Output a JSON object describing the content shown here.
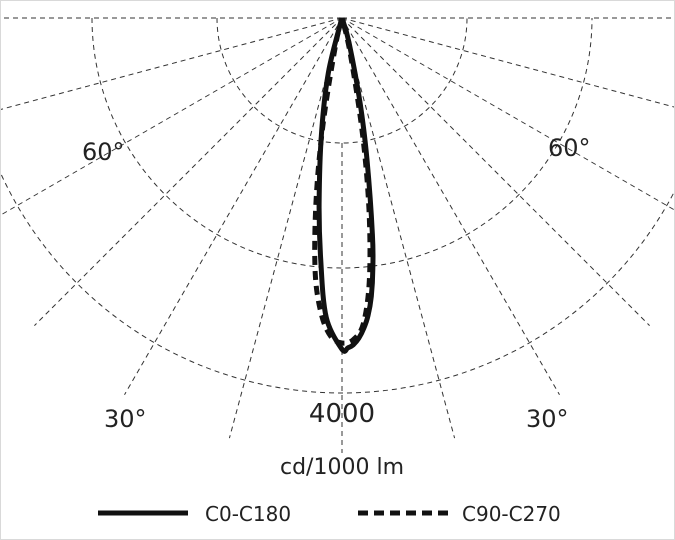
{
  "chart_data": {
    "type": "polar",
    "subtype": "luminous-intensity-distribution",
    "unit_label": "cd/1000 lm",
    "ring_label": "4000",
    "angle_labels": {
      "left_upper": "60°",
      "right_upper": "60°",
      "left_lower": "30°",
      "right_lower": "30°"
    },
    "grid": "dashed radial and circular lines",
    "rmax": 6000,
    "ring_values": [
      2000,
      4000,
      6000
    ],
    "series": [
      {
        "name": "C0-C180",
        "style": "solid",
        "angles_deg": [
          0,
          1,
          2,
          3,
          4,
          5,
          6,
          7,
          8,
          10,
          12,
          16,
          -3,
          -5,
          -7,
          -10,
          -14
        ],
        "values_cd": [
          5300,
          5280,
          5230,
          5130,
          4980,
          4780,
          4480,
          4050,
          3500,
          2300,
          1400,
          400,
          4800,
          3900,
          3000,
          1900,
          900
        ]
      },
      {
        "name": "C90-C270",
        "style": "dashed",
        "angles_deg": [
          0,
          2,
          4,
          6,
          8,
          10,
          13,
          -2,
          -4,
          -6,
          -8,
          -10,
          -13
        ],
        "values_cd": [
          5200,
          5150,
          4900,
          4200,
          3100,
          1900,
          600,
          5100,
          4750,
          4100,
          3000,
          1800,
          500
        ]
      }
    ],
    "legend": {
      "position": "bottom",
      "entries": [
        {
          "label": "C0-C180",
          "style": "solid"
        },
        {
          "label": "C90-C270",
          "style": "dashed"
        }
      ]
    }
  },
  "colors": {
    "curve": "#111111",
    "grid": "#333333",
    "border": "#d9d9d9",
    "text": "#222222"
  }
}
